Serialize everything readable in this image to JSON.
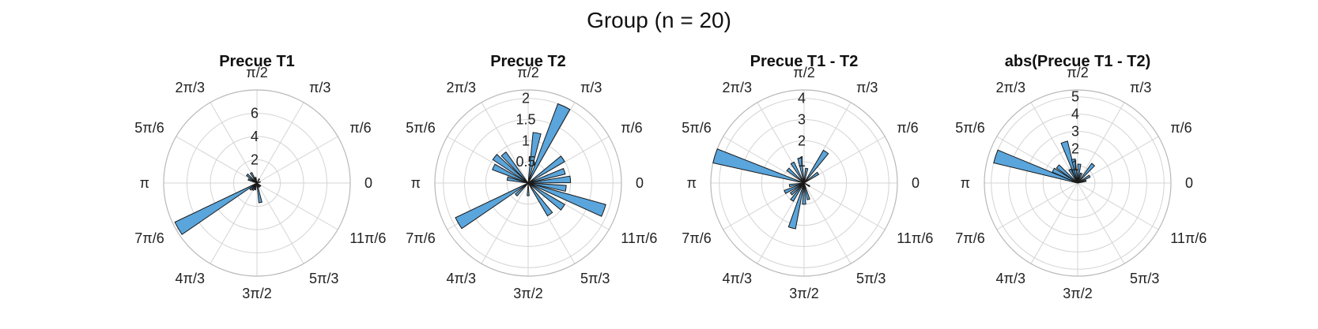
{
  "figure": {
    "title": "Group (n = 20)"
  },
  "colors": {
    "bar_fill": "#5aa5dc",
    "bar_edge": "#1a1a1a",
    "grid": "#d4d4d4"
  },
  "angle_labels": [
    "0",
    "π/6",
    "π/3",
    "π/2",
    "2π/3",
    "5π/6",
    "π",
    "7π/6",
    "4π/3",
    "3π/2",
    "5π/3",
    "11π/6"
  ],
  "chart_data": [
    {
      "type": "polar_histogram",
      "title": "Precue T1",
      "rlim": [
        0,
        8
      ],
      "rticks": [
        2,
        4,
        6
      ],
      "rtick_labels": [
        "2",
        "4",
        "6"
      ],
      "bin_width_deg": 9,
      "bins": [
        {
          "angle_deg": 157,
          "value": 0.8
        },
        {
          "angle_deg": 140,
          "value": 1.1
        },
        {
          "angle_deg": 120,
          "value": 1.0
        },
        {
          "angle_deg": 105,
          "value": 0.5
        },
        {
          "angle_deg": 60,
          "value": 0.4
        },
        {
          "angle_deg": 210,
          "value": 7.8
        },
        {
          "angle_deg": 225,
          "value": 0.8
        },
        {
          "angle_deg": 240,
          "value": 0.7
        },
        {
          "angle_deg": 255,
          "value": 0.6
        },
        {
          "angle_deg": 280,
          "value": 1.7
        },
        {
          "angle_deg": 300,
          "value": 0.4
        },
        {
          "angle_deg": 320,
          "value": 0.4
        },
        {
          "angle_deg": 20,
          "value": 0.3
        }
      ]
    },
    {
      "type": "polar_histogram",
      "title": "Precue T2",
      "rlim": [
        0,
        2.2
      ],
      "rticks": [
        0.5,
        1,
        1.5,
        2
      ],
      "rtick_labels": [
        "0.5",
        "1",
        "1.5",
        "2"
      ],
      "bin_width_deg": 9,
      "bins": [
        {
          "angle_deg": 65,
          "value": 2.0
        },
        {
          "angle_deg": 80,
          "value": 1.2
        },
        {
          "angle_deg": 130,
          "value": 0.9
        },
        {
          "angle_deg": 142,
          "value": 1.0
        },
        {
          "angle_deg": 155,
          "value": 0.9
        },
        {
          "angle_deg": 168,
          "value": 0.5
        },
        {
          "angle_deg": 35,
          "value": 1.0
        },
        {
          "angle_deg": 18,
          "value": 0.9
        },
        {
          "angle_deg": 5,
          "value": 1.0
        },
        {
          "angle_deg": 352,
          "value": 0.9
        },
        {
          "angle_deg": 340,
          "value": 1.9
        },
        {
          "angle_deg": 325,
          "value": 1.0
        },
        {
          "angle_deg": 305,
          "value": 0.9
        },
        {
          "angle_deg": 210,
          "value": 1.9
        },
        {
          "angle_deg": 225,
          "value": 0.4
        },
        {
          "angle_deg": 270,
          "value": 0.3
        }
      ]
    },
    {
      "type": "polar_histogram",
      "title": "Precue T1 - T2",
      "rlim": [
        0,
        4.4
      ],
      "rticks": [
        1,
        2,
        3,
        4
      ],
      "rtick_labels": [
        "1",
        "2",
        "3",
        "4"
      ],
      "bin_width_deg": 9,
      "bins": [
        {
          "angle_deg": 163,
          "value": 4.4
        },
        {
          "angle_deg": 140,
          "value": 1.0
        },
        {
          "angle_deg": 120,
          "value": 1.1
        },
        {
          "angle_deg": 100,
          "value": 1.2
        },
        {
          "angle_deg": 80,
          "value": 0.7
        },
        {
          "angle_deg": 55,
          "value": 1.8
        },
        {
          "angle_deg": 35,
          "value": 0.8
        },
        {
          "angle_deg": 190,
          "value": 0.7
        },
        {
          "angle_deg": 205,
          "value": 1.0
        },
        {
          "angle_deg": 220,
          "value": 0.8
        },
        {
          "angle_deg": 235,
          "value": 1.0
        },
        {
          "angle_deg": 255,
          "value": 2.2
        },
        {
          "angle_deg": 270,
          "value": 1.0
        },
        {
          "angle_deg": 285,
          "value": 0.8
        },
        {
          "angle_deg": 330,
          "value": 0.3
        }
      ]
    },
    {
      "type": "polar_histogram",
      "title": "abs(Precue T1 - T2)",
      "rlim": [
        0,
        5.4
      ],
      "rticks": [
        1,
        2,
        3,
        4,
        5
      ],
      "rtick_labels": [
        "1",
        "2",
        "3",
        "4",
        "5"
      ],
      "bin_width_deg": 9,
      "bins": [
        {
          "angle_deg": 162,
          "value": 5.0
        },
        {
          "angle_deg": 152,
          "value": 1.6
        },
        {
          "angle_deg": 140,
          "value": 1.5
        },
        {
          "angle_deg": 120,
          "value": 0.9
        },
        {
          "angle_deg": 108,
          "value": 2.5
        },
        {
          "angle_deg": 100,
          "value": 1.4
        },
        {
          "angle_deg": 85,
          "value": 1.1
        },
        {
          "angle_deg": 70,
          "value": 0.6
        },
        {
          "angle_deg": 50,
          "value": 1.4
        },
        {
          "angle_deg": 30,
          "value": 0.8
        },
        {
          "angle_deg": 15,
          "value": 0.5
        }
      ]
    }
  ]
}
